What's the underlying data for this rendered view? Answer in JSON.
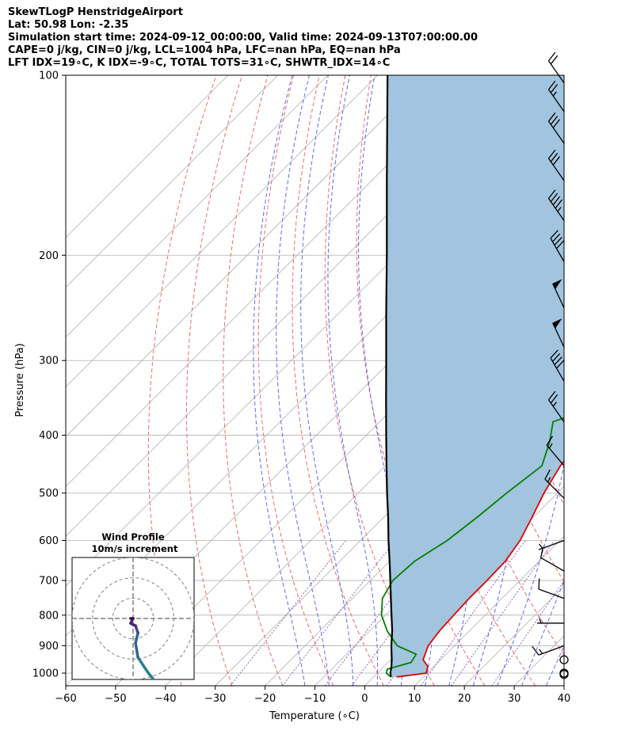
{
  "title_lines": [
    "SkewTLogP HenstridgeAirport",
    "Lat: 50.98   Lon: -2.35",
    "Simulation start time: 2024-09-12_00:00:00, Valid time: 2024-09-13T07:00:00.00",
    "CAPE=0 j/kg, CIN=0 j/kg, LCL=1004 hPa, LFC=nan hPa, EQ=nan hPa",
    "LFT IDX=19∘C, K IDX=-9∘C, TOTAL TOTS=31∘C, SHWTR_IDX=14∘C"
  ],
  "chart_data": {
    "type": "line",
    "xlabel": "Temperature (∘C)",
    "ylabel": "Pressure (hPa)",
    "xlim": [
      -60,
      40
    ],
    "ylim": [
      1050,
      100
    ],
    "x_ticks": [
      -60,
      -50,
      -40,
      -30,
      -20,
      -10,
      0,
      10,
      20,
      30,
      40
    ],
    "x_tick_labels": [
      "−60",
      "−50",
      "−40",
      "−30",
      "−20",
      "−10",
      "0",
      "10",
      "20",
      "30",
      "40"
    ],
    "y_ticks": [
      100,
      200,
      300,
      400,
      500,
      600,
      700,
      800,
      900,
      1000
    ],
    "y_tick_labels": [
      "100",
      "200",
      "300",
      "400",
      "500",
      "600",
      "700",
      "800",
      "900",
      "1000"
    ],
    "grid": true,
    "y_scale": "log",
    "colors": {
      "temperature": "#e00000",
      "dewpoint": "#008000",
      "parcel": "#000000",
      "cape_fill": "#a2c4de",
      "dry_adiabats": "#ef6a6a",
      "moist_adiabats": "#5a6df0",
      "mixing_ratio": "#9a5fc0"
    },
    "series": [
      {
        "key": "temperature",
        "points": [
          [
            1015,
            4.6
          ],
          [
            1000,
            9.8
          ],
          [
            975,
            8.8
          ],
          [
            950,
            6.5
          ],
          [
            900,
            4.7
          ],
          [
            850,
            4.0
          ],
          [
            800,
            3.7
          ],
          [
            750,
            3.4
          ],
          [
            700,
            3.4
          ],
          [
            650,
            3.2
          ],
          [
            600,
            2.0
          ],
          [
            550,
            -0.2
          ],
          [
            500,
            -2.7
          ],
          [
            450,
            -4.9
          ],
          [
            400,
            -6.2
          ],
          [
            370,
            -6.5
          ],
          [
            340,
            -8.1
          ],
          [
            310,
            -11.6
          ],
          [
            290,
            -14.7
          ],
          [
            270,
            -17.3
          ],
          [
            250,
            -17.4
          ],
          [
            240,
            -15.4
          ],
          [
            230,
            -14.9
          ],
          [
            215,
            -14.9
          ],
          [
            200,
            -12.3
          ],
          [
            190,
            -10.5
          ],
          [
            180,
            -10.0
          ],
          [
            160,
            -8.0
          ],
          [
            150,
            -6.4
          ],
          [
            140,
            -4.6
          ],
          [
            130,
            -2.5
          ],
          [
            120,
            -0.5
          ],
          [
            110,
            3.5
          ],
          [
            100,
            8.2
          ]
        ]
      },
      {
        "key": "dewpoint",
        "points": [
          [
            1015,
            3.5
          ],
          [
            1000,
            1.8
          ],
          [
            985,
            1.2
          ],
          [
            960,
            4.6
          ],
          [
            930,
            4.0
          ],
          [
            900,
            -1.5
          ],
          [
            850,
            -6.5
          ],
          [
            800,
            -10.8
          ],
          [
            750,
            -14.0
          ],
          [
            700,
            -15.5
          ],
          [
            650,
            -15.0
          ],
          [
            600,
            -12.6
          ],
          [
            550,
            -11.3
          ],
          [
            500,
            -10.2
          ],
          [
            450,
            -8.6
          ],
          [
            410,
            -11.9
          ],
          [
            380,
            -15.2
          ],
          [
            360,
            -10.2
          ],
          [
            330,
            -6.5
          ],
          [
            300,
            -8.1
          ],
          [
            270,
            -13.5
          ],
          [
            250,
            -16.2
          ],
          [
            230,
            -16.5
          ],
          [
            210,
            -16.5
          ],
          [
            195,
            -14.5
          ],
          [
            180,
            -17.4
          ],
          [
            160,
            -18.9
          ],
          [
            150,
            -19.6
          ],
          [
            140,
            -19.8
          ],
          [
            130,
            -18.5
          ],
          [
            120,
            -17.0
          ],
          [
            110,
            -15.6
          ],
          [
            100,
            -13.4
          ]
        ]
      },
      {
        "key": "parcel",
        "points": [
          [
            1015,
            3.5
          ],
          [
            1000,
            2.6
          ],
          [
            975,
            1.5
          ],
          [
            950,
            0.2
          ],
          [
            900,
            -2.7
          ],
          [
            850,
            -5.5
          ],
          [
            800,
            -8.8
          ],
          [
            750,
            -12.3
          ],
          [
            700,
            -16.0
          ],
          [
            650,
            -20.0
          ],
          [
            600,
            -24.4
          ],
          [
            550,
            -29.0
          ],
          [
            500,
            -34.2
          ],
          [
            450,
            -39.8
          ],
          [
            400,
            -46.0
          ],
          [
            350,
            -53.0
          ],
          [
            300,
            -61.0
          ],
          [
            250,
            -70.5
          ],
          [
            200,
            -82.0
          ],
          [
            150,
            -97.0
          ],
          [
            100,
            -118.0
          ]
        ]
      }
    ],
    "wind_barbs": [
      {
        "p": 1005,
        "speed_kt": 0,
        "dir_deg": 0
      },
      {
        "p": 1000,
        "speed_kt": 0,
        "dir_deg": 0
      },
      {
        "p": 950,
        "speed_kt": 0,
        "dir_deg": 0
      },
      {
        "p": 900,
        "speed_kt": 15,
        "dir_deg": 250
      },
      {
        "p": 825,
        "speed_kt": 5,
        "dir_deg": 270
      },
      {
        "p": 750,
        "speed_kt": 10,
        "dir_deg": 290
      },
      {
        "p": 675,
        "speed_kt": 10,
        "dir_deg": 300
      },
      {
        "p": 600,
        "speed_kt": 5,
        "dir_deg": 250
      },
      {
        "p": 510,
        "speed_kt": 15,
        "dir_deg": 315
      },
      {
        "p": 450,
        "speed_kt": 15,
        "dir_deg": 320
      },
      {
        "p": 380,
        "speed_kt": 25,
        "dir_deg": 325
      },
      {
        "p": 325,
        "speed_kt": 40,
        "dir_deg": 330
      },
      {
        "p": 285,
        "speed_kt": 50,
        "dir_deg": 335
      },
      {
        "p": 245,
        "speed_kt": 50,
        "dir_deg": 335
      },
      {
        "p": 205,
        "speed_kt": 40,
        "dir_deg": 330
      },
      {
        "p": 175,
        "speed_kt": 45,
        "dir_deg": 325
      },
      {
        "p": 150,
        "speed_kt": 30,
        "dir_deg": 325
      },
      {
        "p": 130,
        "speed_kt": 30,
        "dir_deg": 325
      },
      {
        "p": 115,
        "speed_kt": 25,
        "dir_deg": 325
      },
      {
        "p": 103,
        "speed_kt": 20,
        "dir_deg": 325
      }
    ],
    "hodograph": {
      "title_line1": "Wind Profile",
      "title_line2": "10m/s increment",
      "ring_increment_ms": 10,
      "ring_count": 3,
      "range_ms": 30,
      "points_uv": [
        [
          12.5,
          -29.0
        ],
        [
          12.0,
          -27.0
        ],
        [
          10.0,
          -25.0
        ],
        [
          7.0,
          -23.5
        ],
        [
          5.0,
          -22.0
        ],
        [
          6.0,
          -21.0
        ],
        [
          6.5,
          -19.0
        ],
        [
          6.0,
          -16.0
        ],
        [
          5.0,
          -13.5
        ],
        [
          3.0,
          -11.0
        ],
        [
          1.0,
          -8.0
        ],
        [
          0.5,
          -5.0
        ],
        [
          1.0,
          -3.0
        ],
        [
          0.5,
          -1.5
        ],
        [
          -0.5,
          -1.0
        ],
        [
          0.0,
          0.0
        ],
        [
          -0.5,
          0.0
        ]
      ]
    }
  }
}
